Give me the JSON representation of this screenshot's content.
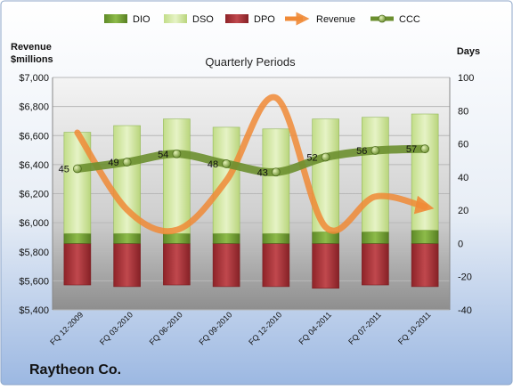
{
  "chart_data": {
    "type": "bar",
    "title": "Quarterly Periods",
    "company": "Raytheon Co.",
    "left_axis_label": [
      "Revenue",
      "$millions"
    ],
    "right_axis_label": "Days",
    "left_ylim": [
      5400,
      7000
    ],
    "left_ticks": [
      "$5,400",
      "$5,600",
      "$5,800",
      "$6,000",
      "$6,200",
      "$6,400",
      "$6,600",
      "$6,800",
      "$7,000"
    ],
    "left_tick_values": [
      5400,
      5600,
      5800,
      6000,
      6200,
      6400,
      6600,
      6800,
      7000
    ],
    "right_ylim": [
      -40,
      100
    ],
    "right_ticks": [
      "-40",
      "-20",
      "0",
      "20",
      "40",
      "60",
      "80",
      "100"
    ],
    "right_tick_values": [
      -40,
      -20,
      0,
      20,
      40,
      60,
      80,
      100
    ],
    "categories": [
      "FQ 12-2009",
      "FQ 03-2010",
      "FQ 06-2010",
      "FQ 09-2010",
      "FQ 12-2010",
      "FQ 04-2011",
      "FQ 07-2011",
      "FQ 10-2011"
    ],
    "legend": [
      "DIO",
      "DSO",
      "DPO",
      "Revenue",
      "CCC"
    ],
    "legend_position": "top",
    "grid": true,
    "series": [
      {
        "name": "DIO",
        "axis": "right",
        "color": "#7AA23A",
        "values": [
          6,
          6,
          6,
          6,
          6,
          7,
          7,
          8
        ]
      },
      {
        "name": "DSO",
        "axis": "right",
        "color": "#D3EAA6",
        "values": [
          61,
          65,
          69,
          64,
          63,
          68,
          69,
          70
        ]
      },
      {
        "name": "DPO",
        "axis": "right",
        "color": "#B23A3F",
        "values": [
          -25,
          -26,
          -25,
          -26,
          -26,
          -27,
          -25,
          -26
        ]
      },
      {
        "name": "Revenue",
        "axis": "left",
        "color": "#F08A36",
        "values": [
          6620,
          6090,
          5950,
          6290,
          6860,
          5970,
          6180,
          6110
        ]
      },
      {
        "name": "CCC",
        "axis": "right",
        "color": "#6B8F2F",
        "values": [
          45,
          49,
          54,
          48,
          43,
          52,
          56,
          57
        ]
      }
    ]
  }
}
